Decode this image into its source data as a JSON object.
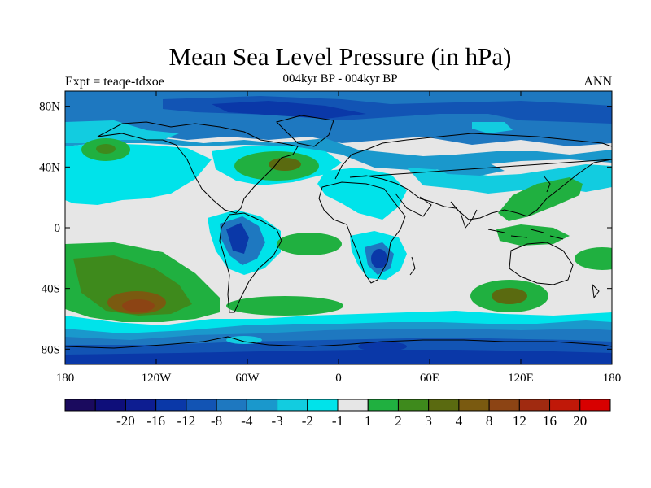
{
  "title": "Mean Sea Level Pressure (in hPa)",
  "subtitle": "004kyr BP - 004kyr BP",
  "left_label": "Expt = teaqe-tdxoe",
  "right_label": "ANN",
  "lat_ticks": [
    {
      "label": "80N",
      "lat": 80
    },
    {
      "label": "40N",
      "lat": 40
    },
    {
      "label": "0",
      "lat": 0
    },
    {
      "label": "40S",
      "lat": -40
    },
    {
      "label": "80S",
      "lat": -80
    }
  ],
  "lon_ticks": [
    {
      "label": "180",
      "lon": -180
    },
    {
      "label": "120W",
      "lon": -120
    },
    {
      "label": "60W",
      "lon": -60
    },
    {
      "label": "0",
      "lon": 0
    },
    {
      "label": "60E",
      "lon": 60
    },
    {
      "label": "120E",
      "lon": 120
    },
    {
      "label": "180",
      "lon": 180
    }
  ],
  "colorbar": {
    "colors": [
      "#1a0a5e",
      "#0e0e7a",
      "#0d1d91",
      "#0a38a8",
      "#1254b4",
      "#1e78c0",
      "#1a98cc",
      "#12cce0",
      "#00e3ea",
      "#e6e6e6",
      "#20b040",
      "#3e8a1c",
      "#5a6a10",
      "#7a5a10",
      "#8c4414",
      "#a02a10",
      "#c01808",
      "#d80000"
    ],
    "labels": [
      "-20",
      "-16",
      "-12",
      "-8",
      "-4",
      "-3",
      "-2",
      "-1",
      "1",
      "2",
      "3",
      "4",
      "8",
      "12",
      "16",
      "20"
    ]
  }
}
